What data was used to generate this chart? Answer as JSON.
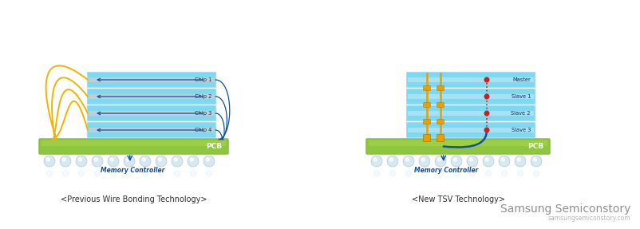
{
  "bg_color": "#ffffff",
  "title_left": "<Previous Wire Bonding Technology>",
  "title_right": "<New TSV Technology>",
  "watermark_line1": "Samsung Semiconstory",
  "watermark_line2": "samsungsemiconstory.com",
  "chip_labels_left": [
    "Chip 4",
    "Chip 3",
    "Chip 2",
    "Chip 1"
  ],
  "chip_labels_right": [
    "Slave 3",
    "Slave 2",
    "Slave 1",
    "Master"
  ],
  "pcb_label": "PCB",
  "memory_controller_label": "Memory Controller",
  "chip_fill": "#7dd8f0",
  "chip_edge": "#b0e0f8",
  "chip_stripe": "#f0c8c8",
  "chip_stripe2": "#e8d8f0",
  "pcb_fill": "#8ec63f",
  "pcb_edge": "#6aaa20",
  "wire_yellow": "#f0b400",
  "wire_blue": "#1050a0",
  "wire_red": "#cc2020",
  "tsv_yellow": "#e8a000",
  "ball_fill": "#d8e8f0",
  "ball_edge": "#a0c0d8",
  "refl_fill": "#e8f0f8",
  "text_blue": "#1050a0",
  "text_dark": "#303030",
  "text_gray": "#909090",
  "text_lgray": "#b8b8b8"
}
